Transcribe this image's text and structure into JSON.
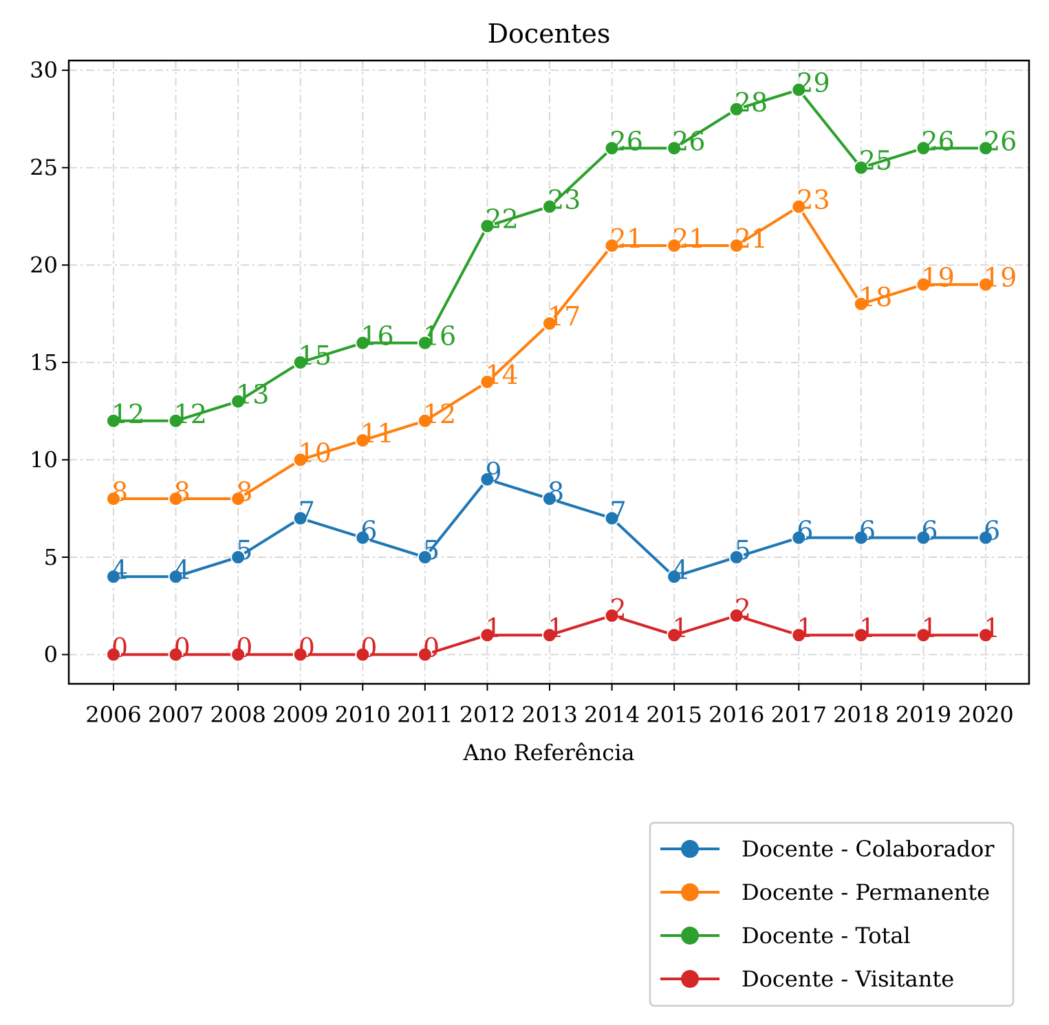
{
  "chart_data": {
    "type": "line",
    "title": "Docentes",
    "xlabel": "Ano Referência",
    "ylabel": "",
    "x": [
      "2006",
      "2007",
      "2008",
      "2009",
      "2010",
      "2011",
      "2012",
      "2013",
      "2014",
      "2015",
      "2016",
      "2017",
      "2018",
      "2019",
      "2020"
    ],
    "ylim": [
      -1.5,
      30.5
    ],
    "yticks": [
      0,
      5,
      10,
      15,
      20,
      25,
      30
    ],
    "grid": true,
    "legend_position": "bottom-right, below plot",
    "series": [
      {
        "name": "Docente - Colaborador",
        "color": "#1f77b4",
        "values": [
          4,
          4,
          5,
          7,
          6,
          5,
          9,
          8,
          7,
          4,
          5,
          6,
          6,
          6,
          6
        ]
      },
      {
        "name": "Docente - Permanente",
        "color": "#ff7f0e",
        "values": [
          8,
          8,
          8,
          10,
          11,
          12,
          14,
          17,
          21,
          21,
          21,
          23,
          18,
          19,
          19
        ]
      },
      {
        "name": "Docente - Total",
        "color": "#2ca02c",
        "values": [
          12,
          12,
          13,
          15,
          16,
          16,
          22,
          23,
          26,
          26,
          28,
          29,
          25,
          26,
          26
        ]
      },
      {
        "name": "Docente - Visitante",
        "color": "#d62728",
        "values": [
          0,
          0,
          0,
          0,
          0,
          0,
          1,
          1,
          2,
          1,
          2,
          1,
          1,
          1,
          1
        ]
      }
    ]
  }
}
